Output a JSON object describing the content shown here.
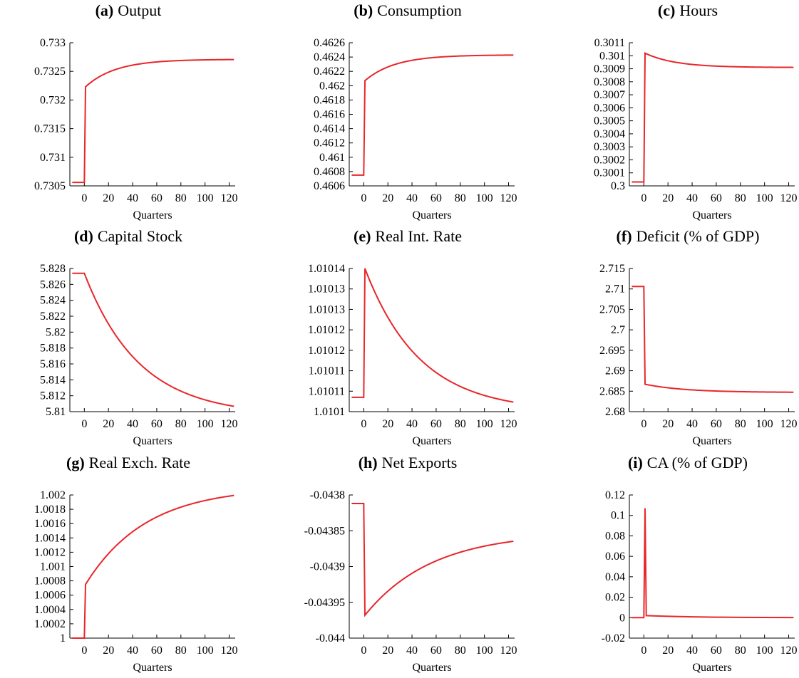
{
  "figure": {
    "line_color": "#e8262a",
    "axis_color": "#000000"
  },
  "chart_data": [
    {
      "type": "line",
      "label": "(a)",
      "title": "Output",
      "xlabel": "Quarters",
      "ylabel": "",
      "xlim": [
        -12,
        125
      ],
      "ylim": [
        0.7305,
        0.733
      ],
      "xticks": [
        0,
        20,
        40,
        60,
        80,
        100,
        120
      ],
      "yticks": [
        "0.7305",
        "0.731",
        "0.7315",
        "0.732",
        "0.7325",
        "0.733"
      ],
      "grid": false,
      "pre_value": 0.73056,
      "jump_value": 0.73223,
      "final_value": 0.73271,
      "decay_rate": 0.04,
      "series": [
        {
          "x": [
            -10,
            0,
            1,
            10,
            20,
            40,
            60,
            80,
            100,
            120,
            124
          ],
          "values": [
            0.73056,
            0.73056,
            0.73223,
            0.73243,
            0.73256,
            0.73267,
            0.7327,
            0.73271,
            0.73271,
            0.73271,
            0.73271
          ]
        }
      ]
    },
    {
      "type": "line",
      "label": "(b)",
      "title": "Consumption",
      "xlabel": "Quarters",
      "ylabel": "",
      "xlim": [
        -12,
        125
      ],
      "ylim": [
        0.4606,
        0.4626
      ],
      "xticks": [
        0,
        20,
        40,
        60,
        80,
        100,
        120
      ],
      "yticks": [
        "0.4606",
        "0.4608",
        "0.461",
        "0.4612",
        "0.4614",
        "0.4616",
        "0.4618",
        "0.462",
        "0.4622",
        "0.4624",
        "0.4626"
      ],
      "grid": false,
      "pre_value": 0.46075,
      "jump_value": 0.46207,
      "final_value": 0.46243,
      "decay_rate": 0.04,
      "series": [
        {
          "x": [
            -10,
            0,
            1,
            10,
            20,
            40,
            60,
            80,
            100,
            120,
            124
          ],
          "values": [
            0.46075,
            0.46075,
            0.46207,
            0.46222,
            0.46232,
            0.46239,
            0.46242,
            0.46243,
            0.46243,
            0.46243,
            0.46243
          ]
        }
      ]
    },
    {
      "type": "line",
      "label": "(c)",
      "title": "Hours",
      "xlabel": "Quarters",
      "ylabel": "",
      "xlim": [
        -12,
        125
      ],
      "ylim": [
        0.3,
        0.3011
      ],
      "xticks": [
        0,
        20,
        40,
        60,
        80,
        100,
        120
      ],
      "yticks": [
        "0.3",
        "0.3001",
        "0.3002",
        "0.3003",
        "0.3004",
        "0.3005",
        "0.3006",
        "0.3007",
        "0.3008",
        "0.3009",
        "0.301",
        "0.3011"
      ],
      "grid": false,
      "pre_value": 0.30003,
      "jump_value": 0.30102,
      "final_value": 0.30091,
      "decay_rate": 0.04,
      "series": [
        {
          "x": [
            -10,
            0,
            1,
            10,
            20,
            40,
            60,
            80,
            100,
            120,
            124
          ],
          "values": [
            0.30003,
            0.30003,
            0.30102,
            0.30098,
            0.30096,
            0.30093,
            0.30092,
            0.30091,
            0.30091,
            0.30091,
            0.30091
          ]
        }
      ]
    },
    {
      "type": "line",
      "label": "(d)",
      "title": "Capital Stock",
      "xlabel": "Quarters",
      "ylabel": "",
      "xlim": [
        -12,
        125
      ],
      "ylim": [
        5.81,
        5.828
      ],
      "xticks": [
        0,
        20,
        40,
        60,
        80,
        100,
        120
      ],
      "yticks": [
        "5.81",
        "5.812",
        "5.814",
        "5.816",
        "5.818",
        "5.82",
        "5.822",
        "5.824",
        "5.826",
        "5.828"
      ],
      "grid": false,
      "pre_value": 5.8274,
      "jump_value": 5.8274,
      "final_value": 5.8095,
      "decay_rate": 0.022,
      "series": [
        {
          "x": [
            -10,
            0,
            20,
            40,
            60,
            80,
            100,
            120,
            124
          ],
          "values": [
            5.8274,
            5.8274,
            5.8214,
            5.8167,
            5.8138,
            5.812,
            5.8108,
            5.8101,
            5.81
          ]
        }
      ]
    },
    {
      "type": "line",
      "label": "(e)",
      "title": "Real Int. Rate",
      "xlabel": "Quarters",
      "ylabel": "",
      "xlim": [
        -12,
        125
      ],
      "ylim": [
        1.0101,
        1.01014
      ],
      "xticks": [
        0,
        20,
        40,
        60,
        80,
        100,
        120
      ],
      "yticks": [
        "1.0101",
        "1.01011",
        "1.01011",
        "1.01012",
        "1.01012",
        "1.01013",
        "1.01013",
        "1.01014"
      ],
      "grid": false,
      "pre_value": 1.010104,
      "jump_value": 1.01014,
      "final_value": 1.0101,
      "decay_rate": 0.022,
      "series": [
        {
          "x": [
            -10,
            0,
            1,
            20,
            40,
            60,
            80,
            100,
            120,
            124
          ],
          "values": [
            1.010104,
            1.010104,
            1.01014,
            1.010127,
            1.010119,
            1.010113,
            1.01011,
            1.010107,
            1.010106,
            1.010106
          ]
        }
      ]
    },
    {
      "type": "line",
      "label": "(f)",
      "title": "Deficit (% of GDP)",
      "xlabel": "Quarters",
      "ylabel": "",
      "xlim": [
        -12,
        125
      ],
      "ylim": [
        2.68,
        2.715
      ],
      "xticks": [
        0,
        20,
        40,
        60,
        80,
        100,
        120
      ],
      "yticks": [
        "2.68",
        "2.685",
        "2.69",
        "2.695",
        "2.7",
        "2.705",
        "2.71",
        "2.715"
      ],
      "grid": false,
      "pre_value": 2.7106,
      "jump_value": 2.6867,
      "final_value": 2.6847,
      "decay_rate": 0.03,
      "series": [
        {
          "x": [
            -10,
            0,
            1,
            20,
            40,
            60,
            80,
            100,
            120,
            124
          ],
          "values": [
            2.7106,
            2.7106,
            2.6867,
            2.6858,
            2.6852,
            2.6849,
            2.6848,
            2.6847,
            2.6847,
            2.6847
          ]
        }
      ]
    },
    {
      "type": "line",
      "label": "(g)",
      "title": "Real Exch. Rate",
      "xlabel": "Quarters",
      "ylabel": "",
      "xlim": [
        -12,
        125
      ],
      "ylim": [
        1,
        1.002
      ],
      "xticks": [
        0,
        20,
        40,
        60,
        80,
        100,
        120
      ],
      "yticks": [
        "1",
        "1.0002",
        "1.0004",
        "1.0006",
        "1.0008",
        "1.001",
        "1.0012",
        "1.0014",
        "1.0016",
        "1.0018",
        "1.002"
      ],
      "grid": false,
      "pre_value": 1.0,
      "jump_value": 1.00075,
      "final_value": 1.00211,
      "decay_rate": 0.02,
      "series": [
        {
          "x": [
            -10,
            0,
            1,
            20,
            40,
            60,
            80,
            100,
            120,
            124
          ],
          "values": [
            1.0,
            1.0,
            1.00075,
            1.00137,
            1.00165,
            1.00181,
            1.00191,
            1.00196,
            1.00199,
            1.002
          ]
        }
      ]
    },
    {
      "type": "line",
      "label": "(h)",
      "title": "Net Exports",
      "xlabel": "Quarters",
      "ylabel": "",
      "xlim": [
        -12,
        125
      ],
      "ylim": [
        -0.044,
        -0.0438
      ],
      "xticks": [
        0,
        20,
        40,
        60,
        80,
        100,
        120
      ],
      "yticks": [
        "-0.044",
        "-0.04395",
        "-0.0439",
        "-0.04385",
        "-0.0438"
      ],
      "grid": false,
      "pre_value": -0.043812,
      "jump_value": -0.043968,
      "final_value": -0.043852,
      "decay_rate": 0.018,
      "series": [
        {
          "x": [
            -10,
            0,
            1,
            20,
            40,
            60,
            80,
            100,
            120,
            124
          ],
          "values": [
            -0.043812,
            -0.043812,
            -0.043968,
            -0.043937,
            -0.043914,
            -0.043899,
            -0.043889,
            -0.043882,
            -0.043877,
            -0.043876
          ]
        }
      ]
    },
    {
      "type": "line",
      "label": "(i)",
      "title": "CA (% of GDP)",
      "xlabel": "Quarters",
      "ylabel": "",
      "xlim": [
        -12,
        125
      ],
      "ylim": [
        -0.02,
        0.12
      ],
      "xticks": [
        0,
        20,
        40,
        60,
        80,
        100,
        120
      ],
      "yticks": [
        "-0.02",
        "0",
        "0.02",
        "0.04",
        "0.06",
        "0.08",
        "0.1",
        "0.12"
      ],
      "grid": false,
      "series": [
        {
          "x": [
            -10,
            0,
            1,
            2,
            3,
            20,
            40,
            60,
            80,
            100,
            120,
            124
          ],
          "values": [
            0,
            0,
            0.107,
            0.002,
            0.0019,
            0.0013,
            0.0008,
            0.0005,
            0.0003,
            0.0002,
            0.0001,
            0.0001
          ]
        }
      ]
    }
  ]
}
